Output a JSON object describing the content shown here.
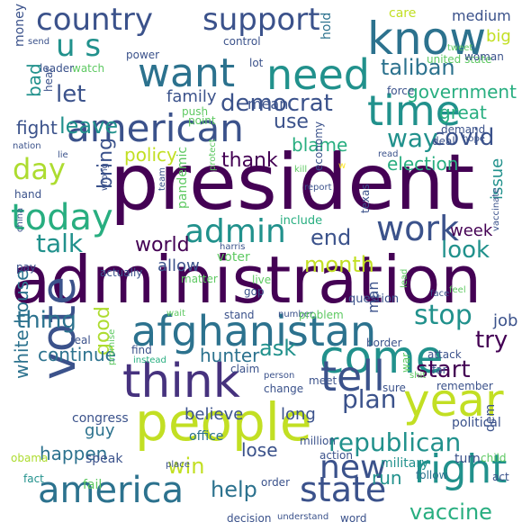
{
  "palette": {
    "dark_purple": "#440154",
    "indigo": "#482677",
    "slate_blue": "#3b528b",
    "teal_blue": "#2c728e",
    "teal": "#21918c",
    "sea_green": "#28ae80",
    "green": "#5ec962",
    "lime": "#addc30",
    "yellow": "#fde725",
    "background": "#ffffff"
  },
  "words": [
    {
      "text": "president",
      "color": "#440154"
    },
    {
      "text": "administration",
      "color": "#440154"
    },
    {
      "text": "people",
      "color": "#c2df23"
    },
    {
      "text": "afghanistan",
      "color": "#2c728e"
    },
    {
      "text": "know",
      "color": "#2c728e"
    },
    {
      "text": "want",
      "color": "#2c728e"
    },
    {
      "text": "need",
      "color": "#21918c"
    },
    {
      "text": "american",
      "color": "#3b528b"
    },
    {
      "text": "think",
      "color": "#46327e"
    },
    {
      "text": "time",
      "color": "#21918c"
    },
    {
      "text": "vote",
      "color": "#3b528b"
    },
    {
      "text": "come",
      "color": "#21918c"
    },
    {
      "text": "support",
      "color": "#3b528b"
    },
    {
      "text": "country",
      "color": "#3b528b"
    },
    {
      "text": "tell",
      "color": "#3b528b"
    },
    {
      "text": "america",
      "color": "#2c728e"
    },
    {
      "text": "state",
      "color": "#3b528b"
    },
    {
      "text": "year",
      "color": "#c2df23"
    },
    {
      "text": "right",
      "color": "#21918c"
    },
    {
      "text": "work",
      "color": "#3b528b"
    },
    {
      "text": "today",
      "color": "#28ae80"
    },
    {
      "text": "admin",
      "color": "#21918c"
    },
    {
      "text": "new",
      "color": "#3b528b"
    },
    {
      "text": "u s",
      "color": "#21918c"
    },
    {
      "text": "day",
      "color": "#addc30"
    },
    {
      "text": "republican",
      "color": "#21918c"
    },
    {
      "text": "democrat",
      "color": "#3b528b"
    },
    {
      "text": "taliban",
      "color": "#2c728e"
    },
    {
      "text": "covid",
      "color": "#3b528b"
    },
    {
      "text": "way",
      "color": "#21918c"
    },
    {
      "text": "talk",
      "color": "#21918c"
    },
    {
      "text": "let",
      "color": "#3b528b"
    },
    {
      "text": "leave",
      "color": "#21918c"
    },
    {
      "text": "ask",
      "color": "#21918c"
    },
    {
      "text": "look",
      "color": "#21918c"
    },
    {
      "text": "try",
      "color": "#440154"
    },
    {
      "text": "stop",
      "color": "#21918c"
    },
    {
      "text": "start",
      "color": "#440154"
    },
    {
      "text": "plan",
      "color": "#3b528b"
    },
    {
      "text": "end",
      "color": "#3b528b"
    },
    {
      "text": "month",
      "color": "#c2df23"
    },
    {
      "text": "thing",
      "color": "#2c728e"
    },
    {
      "text": "good",
      "color": "#addc30"
    },
    {
      "text": "white house",
      "color": "#2c728e"
    },
    {
      "text": "world",
      "color": "#440154"
    },
    {
      "text": "win",
      "color": "#c2df23"
    },
    {
      "text": "help",
      "color": "#2c728e"
    },
    {
      "text": "vaccine",
      "color": "#28ae80"
    },
    {
      "text": "mean",
      "color": "#3b528b"
    },
    {
      "text": "use",
      "color": "#3b528b"
    },
    {
      "text": "government",
      "color": "#28ae80"
    },
    {
      "text": "great",
      "color": "#28ae80"
    },
    {
      "text": "blame",
      "color": "#28ae80"
    },
    {
      "text": "policy",
      "color": "#c2df23"
    },
    {
      "text": "thank",
      "color": "#440154"
    },
    {
      "text": "election",
      "color": "#28ae80"
    },
    {
      "text": "bring",
      "color": "#3b528b"
    },
    {
      "text": "fight",
      "color": "#3b528b"
    },
    {
      "text": "family",
      "color": "#3b528b"
    },
    {
      "text": "bad",
      "color": "#21918c"
    },
    {
      "text": "medium",
      "color": "#3b528b"
    },
    {
      "text": "big",
      "color": "#c2df23"
    },
    {
      "text": "care",
      "color": "#c2df23"
    },
    {
      "text": "hold",
      "color": "#2c728e"
    },
    {
      "text": "continue",
      "color": "#2c728e"
    },
    {
      "text": "hunter",
      "color": "#2c728e"
    },
    {
      "text": "happen",
      "color": "#2c728e"
    },
    {
      "text": "believe",
      "color": "#3b528b"
    },
    {
      "text": "long",
      "color": "#3b528b"
    },
    {
      "text": "lose",
      "color": "#3b528b"
    },
    {
      "text": "run",
      "color": "#21918c"
    },
    {
      "text": "guy",
      "color": "#2c728e"
    },
    {
      "text": "job",
      "color": "#3b528b"
    },
    {
      "text": "week",
      "color": "#440154"
    },
    {
      "text": "allow",
      "color": "#3b528b"
    },
    {
      "text": "issue",
      "color": "#21918c"
    },
    {
      "text": "include",
      "color": "#28ae80"
    },
    {
      "text": "question",
      "color": "#3b528b"
    },
    {
      "text": "man",
      "color": "#3b528b"
    },
    {
      "text": "dem",
      "color": "#3b528b"
    },
    {
      "text": "congress",
      "color": "#3b528b"
    },
    {
      "text": "office",
      "color": "#2c728e"
    },
    {
      "text": "military",
      "color": "#21918c"
    },
    {
      "text": "turn",
      "color": "#3b528b"
    },
    {
      "text": "political",
      "color": "#3b528b"
    },
    {
      "text": "child",
      "color": "#5ec962"
    },
    {
      "text": "speak",
      "color": "#3b528b"
    },
    {
      "text": "fail",
      "color": "#5ec962"
    },
    {
      "text": "obama",
      "color": "#addc30"
    },
    {
      "text": "fact",
      "color": "#21918c"
    },
    {
      "text": "place",
      "color": "#3b528b"
    },
    {
      "text": "action",
      "color": "#3b528b"
    },
    {
      "text": "million",
      "color": "#3b528b"
    },
    {
      "text": "follow",
      "color": "#2c728e"
    },
    {
      "text": "act",
      "color": "#3b528b"
    },
    {
      "text": "order",
      "color": "#3b528b"
    },
    {
      "text": "decision",
      "color": "#3b528b"
    },
    {
      "text": "understand",
      "color": "#3b528b"
    },
    {
      "text": "word",
      "color": "#3b528b"
    },
    {
      "text": "real",
      "color": "#3b528b"
    },
    {
      "text": "find",
      "color": "#3b528b"
    },
    {
      "text": "instead",
      "color": "#28ae80"
    },
    {
      "text": "claim",
      "color": "#3b528b"
    },
    {
      "text": "person",
      "color": "#3b528b"
    },
    {
      "text": "meet",
      "color": "#3b528b"
    },
    {
      "text": "war",
      "color": "#5ec962"
    },
    {
      "text": "shit",
      "color": "#5ec962"
    },
    {
      "text": "remember",
      "color": "#3b528b"
    },
    {
      "text": "change",
      "color": "#3b528b"
    },
    {
      "text": "sure",
      "color": "#3b528b"
    },
    {
      "text": "far",
      "color": "#3b528b"
    },
    {
      "text": "attack",
      "color": "#3b528b"
    },
    {
      "text": "border",
      "color": "#3b528b"
    },
    {
      "text": "stand",
      "color": "#3b528b"
    },
    {
      "text": "number",
      "color": "#3b528b"
    },
    {
      "text": "wait",
      "color": "#5ec962"
    },
    {
      "text": "promise",
      "color": "#5ec962"
    },
    {
      "text": "problem",
      "color": "#5ec962"
    },
    {
      "text": "face",
      "color": "#3b528b"
    },
    {
      "text": "lead",
      "color": "#5ec962"
    },
    {
      "text": "matter",
      "color": "#5ec962"
    },
    {
      "text": "live",
      "color": "#5ec962"
    },
    {
      "text": "voter",
      "color": "#5ec962"
    },
    {
      "text": "gop",
      "color": "#3b528b"
    },
    {
      "text": "texas",
      "color": "#3b528b"
    },
    {
      "text": "feel",
      "color": "#5ec962"
    },
    {
      "text": "vaccinate",
      "color": "#3b528b"
    },
    {
      "text": "pandemic",
      "color": "#5ec962"
    },
    {
      "text": "harris",
      "color": "#3b528b"
    },
    {
      "text": "team",
      "color": "#3b528b"
    },
    {
      "text": "protect",
      "color": "#5ec962"
    },
    {
      "text": "wrong",
      "color": "#3b528b"
    },
    {
      "text": "economy",
      "color": "#3b528b"
    },
    {
      "text": "report",
      "color": "#3b528b"
    },
    {
      "text": "kill",
      "color": "#5ec962"
    },
    {
      "text": "w",
      "color": "#fde725"
    },
    {
      "text": "read",
      "color": "#3b528b"
    },
    {
      "text": "deal",
      "color": "#3b528b"
    },
    {
      "text": "hope",
      "color": "#3b528b"
    },
    {
      "text": "demand",
      "color": "#3b528b"
    },
    {
      "text": "force",
      "color": "#3b528b"
    },
    {
      "text": "push",
      "color": "#5ec962"
    },
    {
      "text": "point",
      "color": "#5ec962"
    },
    {
      "text": "hear",
      "color": "#3b528b"
    },
    {
      "text": "watch",
      "color": "#5ec962"
    },
    {
      "text": "leader",
      "color": "#3b528b"
    },
    {
      "text": "lot",
      "color": "#3b528b"
    },
    {
      "text": "control",
      "color": "#3b528b"
    },
    {
      "text": "power",
      "color": "#3b528b"
    },
    {
      "text": "united state",
      "color": "#5ec962"
    },
    {
      "text": "tweet",
      "color": "#5ec962"
    },
    {
      "text": "woman",
      "color": "#3b528b"
    },
    {
      "text": "send",
      "color": "#3b528b"
    },
    {
      "text": "money",
      "color": "#3b528b"
    },
    {
      "text": "lie",
      "color": "#3b528b"
    },
    {
      "text": "nation",
      "color": "#3b528b"
    },
    {
      "text": "hand",
      "color": "#3b528b"
    },
    {
      "text": "china",
      "color": "#3b528b"
    },
    {
      "text": "pay",
      "color": "#3b528b"
    },
    {
      "text": "actually",
      "color": "#3b528b"
    },
    {
      "text": "love",
      "color": "#3b528b"
    }
  ]
}
